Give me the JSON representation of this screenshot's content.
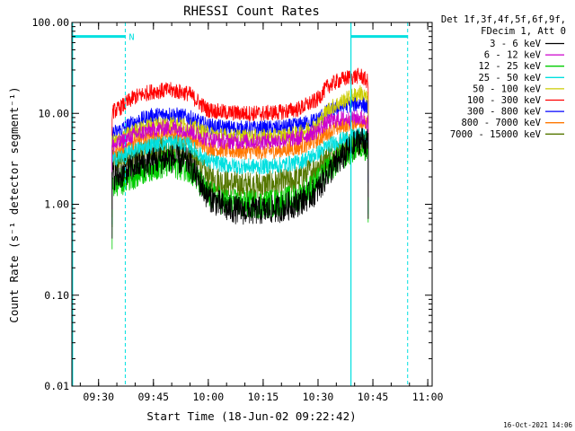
{
  "chart_data": {
    "type": "line",
    "title": "RHESSI Count Rates",
    "xlabel": "Start Time (18-Jun-02 09:22:42)",
    "ylabel": "Count Rate (s⁻¹ detector segment⁻¹)",
    "y_scale": "log",
    "ylim": [
      0.01,
      100
    ],
    "y_ticks": [
      0.01,
      0.1,
      1,
      10,
      100
    ],
    "y_tick_labels": [
      "0.01",
      "0.10",
      "1.00",
      "10.00",
      "100.00"
    ],
    "x_unit": "minutes after 09:22:42",
    "xlim": [
      0,
      98.5
    ],
    "x_ticks": [
      7.3,
      22.3,
      37.3,
      52.3,
      67.3,
      82.3,
      97.3
    ],
    "x_tick_labels": [
      "09:30",
      "09:45",
      "10:00",
      "10:15",
      "10:30",
      "10:45",
      "11:00"
    ],
    "legend_header": [
      "Det 1f,3f,4f,5f,6f,9f,",
      "FDecim 1, Att 0"
    ],
    "legend_position": "right-outside",
    "series": [
      {
        "name": "3 - 6 keV",
        "color": "#000000",
        "values": [
          [
            11.0,
            2.1
          ],
          [
            12.5,
            2.0
          ],
          [
            17,
            2.6
          ],
          [
            22,
            3.0
          ],
          [
            27,
            3.2
          ],
          [
            32,
            2.9
          ],
          [
            37,
            1.25
          ],
          [
            42,
            0.9
          ],
          [
            47,
            0.85
          ],
          [
            52,
            0.85
          ],
          [
            57,
            0.9
          ],
          [
            62,
            1.05
          ],
          [
            67,
            1.4
          ],
          [
            70,
            2.2
          ],
          [
            73,
            3.0
          ],
          [
            76,
            4.0
          ],
          [
            79,
            5.2
          ],
          [
            81,
            4.6
          ]
        ]
      },
      {
        "name": "6 - 12 keV",
        "color": "#cc00cc",
        "values": [
          [
            11.0,
            4.4
          ],
          [
            12.5,
            4.6
          ],
          [
            17,
            5.8
          ],
          [
            22,
            6.6
          ],
          [
            27,
            7.0
          ],
          [
            32,
            6.5
          ],
          [
            37,
            5.2
          ],
          [
            42,
            4.9
          ],
          [
            47,
            4.9
          ],
          [
            52,
            4.9
          ],
          [
            57,
            5.0
          ],
          [
            62,
            5.3
          ],
          [
            67,
            6.4
          ],
          [
            70,
            8.0
          ],
          [
            73,
            8.6
          ],
          [
            76,
            8.8
          ],
          [
            79,
            9.0
          ],
          [
            81,
            8.0
          ]
        ]
      },
      {
        "name": "12 - 25 keV",
        "color": "#00cc00",
        "values": [
          [
            11.0,
            1.6
          ],
          [
            12.5,
            1.7
          ],
          [
            17,
            2.1
          ],
          [
            22,
            2.6
          ],
          [
            27,
            2.8
          ],
          [
            32,
            2.5
          ],
          [
            37,
            1.3
          ],
          [
            42,
            1.05
          ],
          [
            47,
            1.0
          ],
          [
            52,
            1.0
          ],
          [
            57,
            1.05
          ],
          [
            62,
            1.2
          ],
          [
            67,
            1.7
          ],
          [
            70,
            2.4
          ],
          [
            73,
            3.1
          ],
          [
            76,
            3.8
          ],
          [
            79,
            4.6
          ],
          [
            81,
            4.2
          ]
        ]
      },
      {
        "name": "25 - 50 keV",
        "color": "#00e0e0",
        "values": [
          [
            11.0,
            3.0
          ],
          [
            12.5,
            3.2
          ],
          [
            17,
            3.9
          ],
          [
            22,
            4.5
          ],
          [
            27,
            4.8
          ],
          [
            32,
            4.5
          ],
          [
            37,
            3.0
          ],
          [
            42,
            2.7
          ],
          [
            47,
            2.6
          ],
          [
            52,
            2.6
          ],
          [
            57,
            2.7
          ],
          [
            62,
            2.9
          ],
          [
            67,
            3.6
          ],
          [
            70,
            4.4
          ],
          [
            73,
            5.0
          ],
          [
            76,
            5.4
          ],
          [
            79,
            5.8
          ],
          [
            81,
            5.2
          ]
        ]
      },
      {
        "name": "50 - 100 keV",
        "color": "#cccc00",
        "values": [
          [
            11.0,
            4.8
          ],
          [
            12.5,
            5.0
          ],
          [
            17,
            6.4
          ],
          [
            22,
            7.4
          ],
          [
            27,
            7.8
          ],
          [
            32,
            7.2
          ],
          [
            37,
            6.0
          ],
          [
            42,
            5.6
          ],
          [
            47,
            5.5
          ],
          [
            52,
            5.5
          ],
          [
            57,
            5.6
          ],
          [
            62,
            6.0
          ],
          [
            67,
            7.4
          ],
          [
            70,
            11.0
          ],
          [
            73,
            13.0
          ],
          [
            76,
            15.0
          ],
          [
            79,
            17.0
          ],
          [
            81,
            14.0
          ]
        ]
      },
      {
        "name": "100 - 300 keV",
        "color": "#ff0000",
        "values": [
          [
            11.0,
            10.5
          ],
          [
            12.5,
            11.0
          ],
          [
            17,
            15.0
          ],
          [
            22,
            17.5
          ],
          [
            27,
            18.0
          ],
          [
            32,
            16.5
          ],
          [
            37,
            11.0
          ],
          [
            42,
            10.2
          ],
          [
            47,
            10.0
          ],
          [
            52,
            10.0
          ],
          [
            57,
            10.3
          ],
          [
            62,
            11.2
          ],
          [
            67,
            14.0
          ],
          [
            70,
            20.0
          ],
          [
            73,
            23.0
          ],
          [
            76,
            25.0
          ],
          [
            79,
            26.0
          ],
          [
            81,
            22.0
          ]
        ]
      },
      {
        "name": "300 - 800 keV",
        "color": "#0000ff",
        "values": [
          [
            11.0,
            6.0
          ],
          [
            12.5,
            6.3
          ],
          [
            17,
            8.0
          ],
          [
            22,
            9.4
          ],
          [
            27,
            9.8
          ],
          [
            32,
            9.0
          ],
          [
            37,
            7.3
          ],
          [
            42,
            6.9
          ],
          [
            47,
            6.8
          ],
          [
            52,
            6.8
          ],
          [
            57,
            6.9
          ],
          [
            62,
            7.4
          ],
          [
            67,
            8.5
          ],
          [
            70,
            10.5
          ],
          [
            73,
            11.5
          ],
          [
            76,
            12.5
          ],
          [
            79,
            13.0
          ],
          [
            81,
            11.5
          ]
        ]
      },
      {
        "name": "800 - 7000 keV",
        "color": "#ff7700",
        "values": [
          [
            11.0,
            3.6
          ],
          [
            12.5,
            3.8
          ],
          [
            17,
            4.8
          ],
          [
            22,
            5.6
          ],
          [
            27,
            6.0
          ],
          [
            32,
            5.5
          ],
          [
            37,
            4.2
          ],
          [
            42,
            3.9
          ],
          [
            47,
            3.8
          ],
          [
            52,
            3.8
          ],
          [
            57,
            3.9
          ],
          [
            62,
            4.2
          ],
          [
            67,
            5.0
          ],
          [
            70,
            6.2
          ],
          [
            73,
            7.0
          ],
          [
            76,
            7.8
          ],
          [
            79,
            8.3
          ],
          [
            81,
            7.3
          ]
        ]
      },
      {
        "name": "7000 - 15000 keV",
        "color": "#557700",
        "values": [
          [
            11.0,
            2.8
          ],
          [
            12.5,
            2.9
          ],
          [
            17,
            3.4
          ],
          [
            22,
            3.9
          ],
          [
            27,
            4.1
          ],
          [
            32,
            3.8
          ],
          [
            37,
            2.0
          ],
          [
            42,
            1.7
          ],
          [
            47,
            1.6
          ],
          [
            52,
            1.6
          ],
          [
            57,
            1.7
          ],
          [
            62,
            1.9
          ],
          [
            67,
            2.6
          ],
          [
            70,
            3.3
          ],
          [
            73,
            4.0
          ],
          [
            76,
            4.6
          ],
          [
            79,
            5.1
          ],
          [
            81,
            4.6
          ]
        ]
      }
    ],
    "cyan_markers": {
      "color": "#00e0e0",
      "solid_lines_x": [
        0.2,
        76.3
      ],
      "dashed_lines_x": [
        14.6,
        91.8
      ],
      "bars": [
        {
          "from": 0.2,
          "to": 14.6,
          "y": 70
        },
        {
          "from": 76.3,
          "to": 91.8,
          "y": 70
        }
      ],
      "label": "N"
    }
  },
  "footer": {
    "timestamp": "16-Oct-2021 14:06"
  }
}
